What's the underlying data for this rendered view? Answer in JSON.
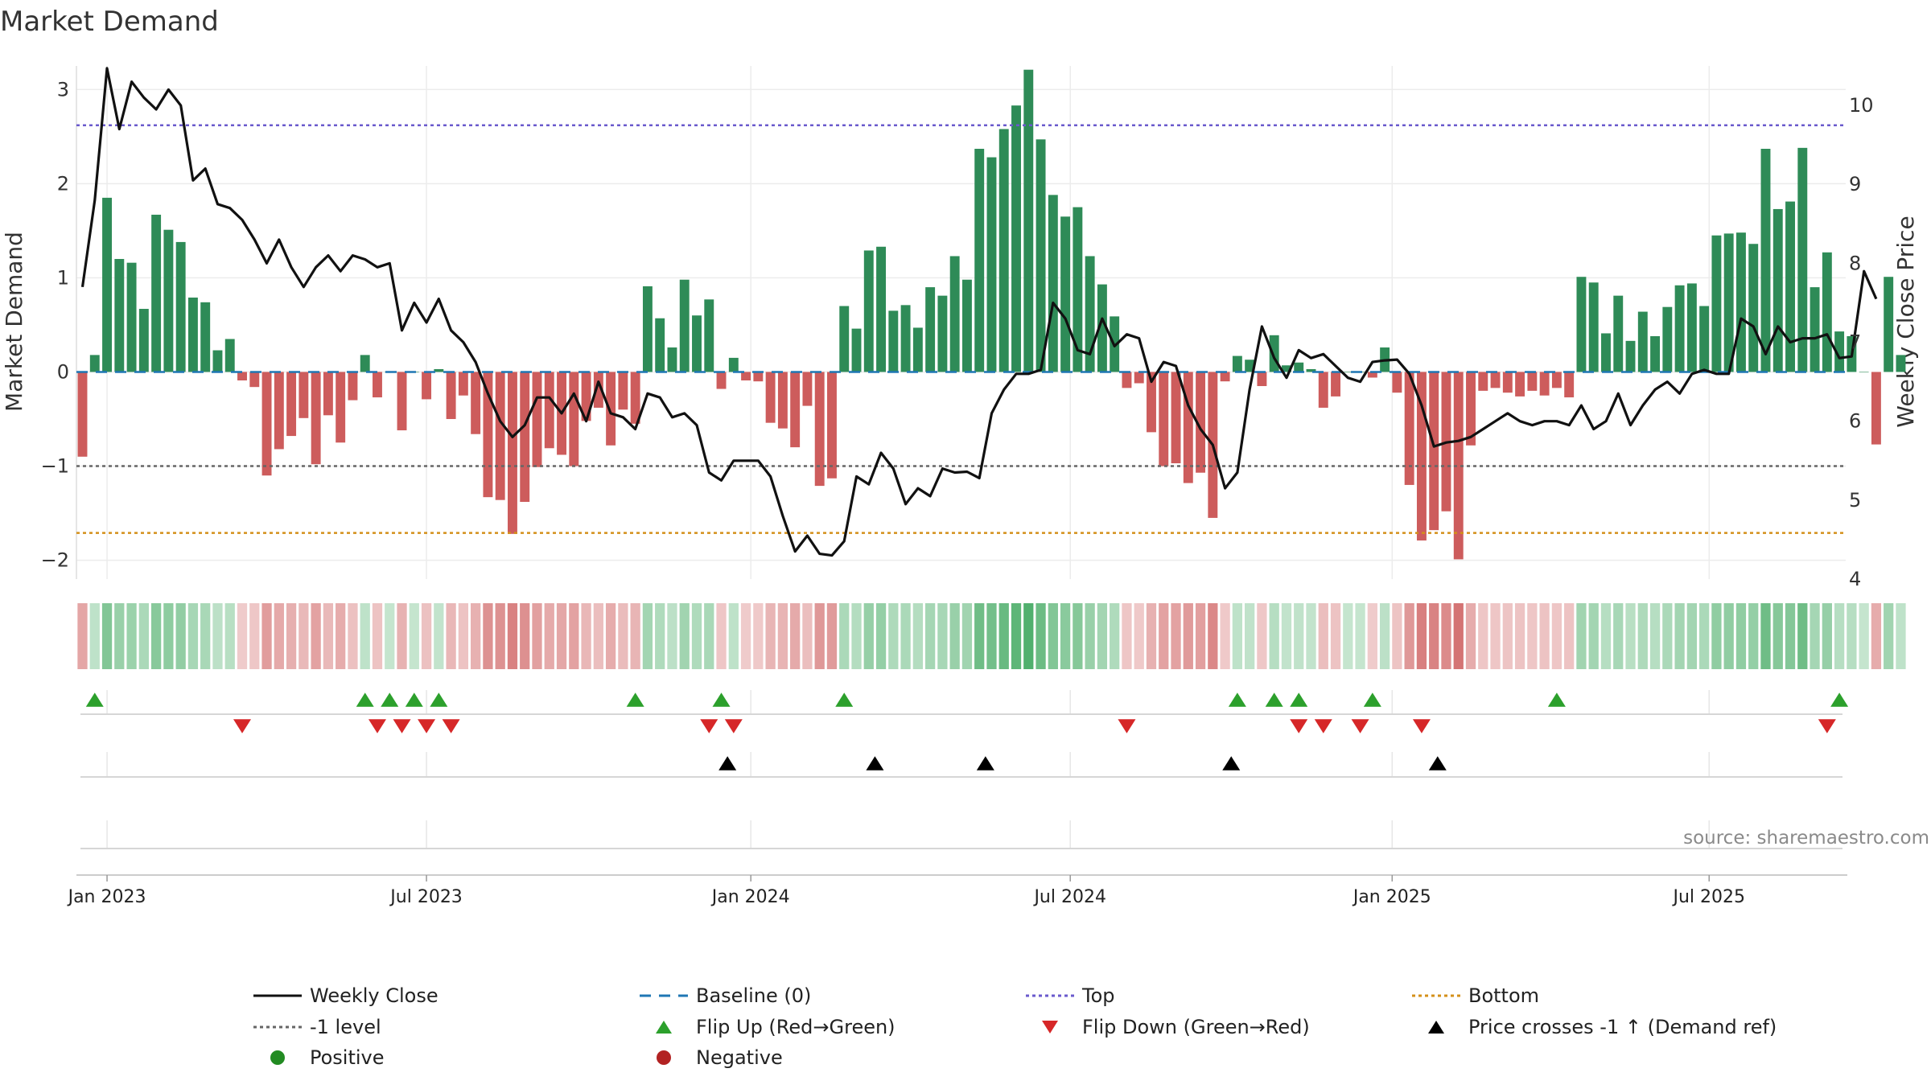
{
  "chart_data": {
    "type": "bar",
    "title": "Market Demand",
    "ylabel_left": "Market Demand",
    "ylabel_right": "Weekly Close Price",
    "ylim_left": [
      -2.2,
      3.25
    ],
    "ylim_right": [
      4.0,
      10.5
    ],
    "yticks_left": [
      3,
      2,
      1,
      0,
      -1,
      -2
    ],
    "ytick_labels_left": [
      "3",
      "2",
      "1",
      "0",
      "−1",
      "−2"
    ],
    "yticks_right": [
      10,
      9,
      8,
      7,
      6,
      5,
      4
    ],
    "ytick_labels_right": [
      "10",
      "9",
      "8",
      "7",
      "6",
      "5",
      "4"
    ],
    "x_ticks": [
      {
        "label": "Jan 2023",
        "week": 3
      },
      {
        "label": "Jul 2023",
        "week": 29
      },
      {
        "label": "Jan 2024",
        "week": 55.4
      },
      {
        "label": "Jul 2024",
        "week": 81.4
      },
      {
        "label": "Jan 2025",
        "week": 107.6
      },
      {
        "label": "Jul 2025",
        "week": 133.4
      }
    ],
    "levels": {
      "top": 2.62,
      "minus_one": -1.0,
      "bottom": -1.71,
      "baseline": 0
    },
    "colors": {
      "positive_bar": "#2e8b57",
      "negative_bar": "#cd5c5c",
      "price_line": "#111111",
      "baseline": "#1f77b4",
      "top": "#6a5acd",
      "minus_one": "#666666",
      "bottom": "#d4901a",
      "flip_up": "#2ca02c",
      "flip_down": "#d62728",
      "price_cross": "#000000",
      "positive_dot": "#228b22",
      "negative_dot": "#b22222"
    },
    "start_week": 1,
    "values": [
      -0.9,
      0.18,
      1.85,
      1.2,
      1.16,
      0.67,
      1.67,
      1.51,
      1.38,
      0.79,
      0.74,
      0.23,
      0.35,
      -0.09,
      -0.16,
      -1.1,
      -0.82,
      -0.68,
      -0.49,
      -0.98,
      -0.46,
      -0.75,
      -0.3,
      0.18,
      -0.27,
      0.0,
      -0.62,
      0.0,
      -0.29,
      0.03,
      -0.5,
      -0.25,
      -0.66,
      -1.33,
      -1.36,
      -1.72,
      -1.38,
      -1.01,
      -0.81,
      -0.88,
      -1.0,
      -0.52,
      -0.38,
      -0.78,
      -0.4,
      -0.55,
      0.91,
      0.57,
      0.26,
      0.98,
      0.6,
      0.77,
      -0.18,
      0.15,
      -0.09,
      -0.1,
      -0.54,
      -0.6,
      -0.8,
      -0.36,
      -1.21,
      -1.13,
      0.7,
      0.46,
      1.29,
      1.33,
      0.65,
      0.71,
      0.47,
      0.9,
      0.81,
      1.23,
      0.98,
      2.37,
      2.28,
      2.58,
      2.83,
      3.21,
      2.47,
      1.88,
      1.65,
      1.75,
      1.23,
      0.93,
      0.59,
      -0.17,
      -0.12,
      -0.64,
      -1.0,
      -0.97,
      -1.18,
      -1.07,
      -1.55,
      -0.1,
      0.17,
      0.13,
      -0.15,
      0.39,
      0.07,
      0.1,
      0.03,
      -0.38,
      -0.26,
      0.0,
      0.0,
      -0.06,
      0.26,
      -0.22,
      -1.2,
      -1.79,
      -1.68,
      -1.48,
      -1.99,
      -0.78,
      -0.2,
      -0.17,
      -0.22,
      -0.26,
      -0.2,
      -0.25,
      -0.17,
      -0.27,
      1.01,
      0.95,
      0.41,
      0.81,
      0.33,
      0.64,
      0.38,
      0.69,
      0.92,
      0.94,
      0.7,
      1.45,
      1.47,
      1.48,
      1.36,
      2.37,
      1.73,
      1.81,
      2.38,
      0.9,
      1.27,
      0.43,
      0.38,
      0.0,
      -0.77,
      1.01,
      0.18
    ],
    "series": [
      {
        "name": "Weekly Close",
        "axis": "right",
        "values": [
          7.7,
          8.8,
          10.47,
          9.7,
          10.3,
          10.1,
          9.95,
          10.2,
          10.0,
          9.05,
          9.2,
          8.75,
          8.7,
          8.55,
          8.3,
          8.0,
          8.3,
          7.95,
          7.7,
          7.95,
          8.1,
          7.9,
          8.1,
          8.05,
          7.95,
          8.0,
          7.15,
          7.5,
          7.25,
          7.55,
          7.15,
          7.0,
          6.75,
          6.35,
          6.0,
          5.8,
          5.95,
          6.3,
          6.3,
          6.1,
          6.35,
          6.0,
          6.5,
          6.1,
          6.05,
          5.9,
          6.35,
          6.3,
          6.05,
          6.1,
          5.95,
          5.35,
          5.25,
          5.5,
          5.5,
          5.5,
          5.3,
          4.8,
          4.35,
          4.55,
          4.32,
          4.3,
          4.48,
          5.3,
          5.2,
          5.6,
          5.4,
          4.95,
          5.15,
          5.05,
          5.4,
          5.35,
          5.36,
          5.28,
          6.1,
          6.4,
          6.6,
          6.6,
          6.65,
          7.5,
          7.3,
          6.9,
          6.85,
          7.3,
          6.95,
          7.1,
          7.05,
          6.5,
          6.75,
          6.7,
          6.2,
          5.9,
          5.7,
          5.15,
          5.35,
          6.4,
          7.2,
          6.8,
          6.55,
          6.9,
          6.8,
          6.85,
          6.7,
          6.55,
          6.5,
          6.75,
          6.77,
          6.78,
          6.6,
          6.2,
          5.68,
          5.73,
          5.75,
          5.8,
          5.9,
          6.0,
          6.1,
          6.0,
          5.95,
          6.0,
          6.0,
          5.95,
          6.2,
          5.9,
          6.0,
          6.35,
          5.95,
          6.2,
          6.4,
          6.5,
          6.35,
          6.6,
          6.65,
          6.6,
          6.6,
          7.3,
          7.2,
          6.85,
          7.2,
          7.0,
          7.05,
          7.05,
          7.1,
          6.8,
          6.82,
          7.9,
          7.55
        ]
      },
      {
        "name": "Market Demand",
        "axis": "left",
        "type": "bar"
      }
    ],
    "heat_strip": "Market Demand intensity band (green = positive, red = negative)",
    "flip_up_weeks": [
      2,
      24,
      26,
      28,
      30,
      46,
      53,
      63,
      95,
      98,
      100,
      106,
      121,
      144
    ],
    "flip_down_weeks": [
      14,
      25,
      27,
      29,
      31,
      52,
      54,
      86,
      100,
      102,
      105,
      110,
      143
    ],
    "price_cross_weeks": [
      53.5,
      65.5,
      74.5,
      94.5,
      111.3
    ],
    "source_note": "source: sharemaestro.com",
    "legend": [
      {
        "label": "Weekly Close",
        "kind": "line"
      },
      {
        "label": "Baseline (0)",
        "kind": "dash"
      },
      {
        "label": "Top",
        "kind": "dot-top"
      },
      {
        "label": "Bottom",
        "kind": "dot-bottom"
      },
      {
        "label": "-1 level",
        "kind": "dot-minus"
      },
      {
        "label": "Flip Up (Red→Green)",
        "kind": "tri-up-green"
      },
      {
        "label": "Flip Down (Green→Red)",
        "kind": "tri-down-red"
      },
      {
        "label": "Price crosses -1 ↑ (Demand ref)",
        "kind": "tri-up-black"
      },
      {
        "label": "Positive",
        "kind": "dot-green"
      },
      {
        "label": "Negative",
        "kind": "dot-red"
      }
    ]
  }
}
